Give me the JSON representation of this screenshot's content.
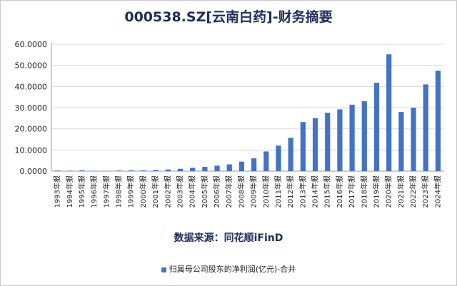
{
  "title": "000538.SZ[云南白药]-财务摘要",
  "source": "数据来源：同花顺iFinD",
  "chart_data": {
    "type": "bar",
    "title": "000538.SZ[云南白药]-财务摘要",
    "categories": [
      "1993年报",
      "1994年报",
      "1995年报",
      "1996年报",
      "1997年报",
      "1998年报",
      "1999年报",
      "2000年报",
      "2001年报",
      "2002年报",
      "2003年报",
      "2004年报",
      "2005年报",
      "2006年报",
      "2007年报",
      "2008年报",
      "2009年报",
      "2010年报",
      "2011年报",
      "2012年报",
      "2013年报",
      "2014年报",
      "2015年报",
      "2016年报",
      "2017年报",
      "2018年报",
      "2019年报",
      "2020年报",
      "2021年报",
      "2022年报",
      "2023年报",
      "2024年报"
    ],
    "series": [
      {
        "name": "归属母公司股东的净利润(亿元)-合并",
        "color": "#4472C4",
        "values": [
          0.3,
          0.2,
          0.4,
          0.1,
          0.1,
          0.3,
          0.4,
          0.4,
          0.6,
          0.8,
          1.1,
          1.6,
          2.0,
          2.6,
          3.2,
          4.5,
          6.1,
          9.3,
          12.1,
          15.8,
          23.2,
          25.1,
          27.6,
          29.2,
          31.4,
          33.1,
          41.8,
          55.2,
          28.0,
          30.0,
          41.0,
          47.5
        ]
      }
    ],
    "yticks": [
      "0.0000",
      "10.0000",
      "20.0000",
      "30.0000",
      "40.0000",
      "50.0000",
      "60.0000"
    ],
    "ylim": [
      0,
      60
    ],
    "grid": true,
    "legend": "bottom"
  }
}
